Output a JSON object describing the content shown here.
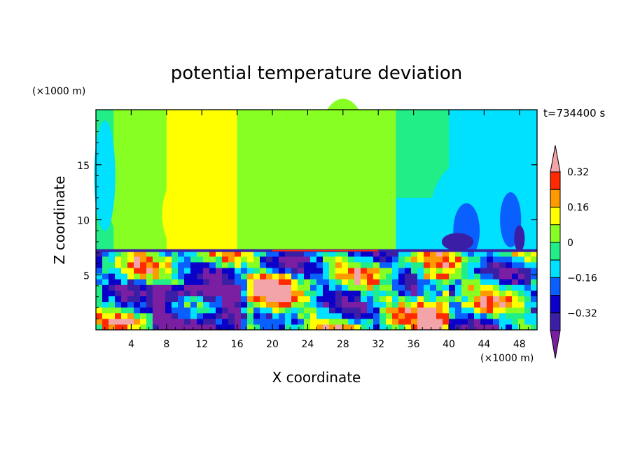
{
  "chart_data": {
    "type": "heatmap",
    "title": "potential temperature deviation",
    "xlabel": "X coordinate",
    "ylabel": "Z coordinate",
    "x_unit": "(×1000 m)",
    "y_unit": "(×1000 m)",
    "time_label": "t=734400 s",
    "xlim": [
      0,
      50
    ],
    "ylim": [
      0,
      20
    ],
    "x_ticks": [
      4,
      8,
      12,
      16,
      20,
      24,
      28,
      32,
      36,
      40,
      44,
      48
    ],
    "x_tick_labels": [
      "4",
      "8",
      "12",
      "16",
      "20",
      "24",
      "28",
      "32",
      "36",
      "40",
      "44",
      "48"
    ],
    "y_ticks": [
      5,
      10,
      15
    ],
    "y_tick_labels": [
      "5",
      "10",
      "15"
    ],
    "colorbar": {
      "levels": [
        -0.4,
        -0.32,
        -0.24,
        -0.16,
        -0.08,
        0,
        0.08,
        0.16,
        0.24,
        0.32,
        0.4
      ],
      "tick_values": [
        0.32,
        0.16,
        0,
        -0.16,
        -0.32
      ],
      "tick_labels": [
        "0.32",
        "0.16",
        "0",
        "−0.16",
        "−0.32"
      ],
      "colors_low_to_high": [
        "#7a1fa2",
        "#3a1fa6",
        "#0b00c9",
        "#0a60ff",
        "#00e0ff",
        "#22ee88",
        "#88ff22",
        "#ffff00",
        "#ff9900",
        "#ff2a00",
        "#f2a4a8"
      ],
      "extend": "both"
    },
    "tropopause_z": 7.2,
    "cells": [
      {
        "x": [
          0,
          2
        ],
        "z": [
          7.2,
          20
        ],
        "v": 0
      },
      {
        "x": [
          2,
          4
        ],
        "z": [
          7.2,
          20
        ],
        "v": 0.08
      },
      {
        "x": [
          4,
          8
        ],
        "z": [
          7.2,
          20
        ],
        "v": 0.08
      },
      {
        "x": [
          8,
          16
        ],
        "z": [
          16,
          20
        ],
        "v": 0.16
      },
      {
        "x": [
          8,
          16
        ],
        "z": [
          7.2,
          16
        ],
        "v": 0.16
      },
      {
        "x": [
          16,
          20
        ],
        "z": [
          7.2,
          20
        ],
        "v": 0.08
      },
      {
        "x": [
          20,
          26
        ],
        "z": [
          7.2,
          20
        ],
        "v": 0.08
      },
      {
        "x": [
          26,
          30
        ],
        "z": [
          7.2,
          20
        ],
        "v": 0.08
      },
      {
        "x": [
          30,
          34
        ],
        "z": [
          7.2,
          20
        ],
        "v": 0.08
      },
      {
        "x": [
          34,
          40
        ],
        "z": [
          12,
          20
        ],
        "v": 0
      },
      {
        "x": [
          34,
          40
        ],
        "z": [
          7.2,
          12
        ],
        "v": -0.08
      },
      {
        "x": [
          40,
          46
        ],
        "z": [
          14,
          20
        ],
        "v": -0.08
      },
      {
        "x": [
          40,
          46
        ],
        "z": [
          7.2,
          14
        ],
        "v": -0.08
      },
      {
        "x": [
          46,
          50
        ],
        "z": [
          7.2,
          20
        ],
        "v": -0.08
      }
    ]
  }
}
